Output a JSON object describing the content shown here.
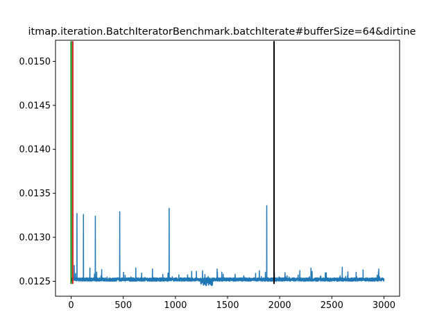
{
  "chart_data": {
    "type": "line",
    "title": "itmap.iteration.BatchIteratorBenchmark.batchIterate#bufferSize=64&dirtine",
    "xlabel": "",
    "ylabel": "",
    "xlim": [
      -150,
      3150
    ],
    "ylim": [
      0.01233,
      0.01524
    ],
    "xticks": [
      0,
      500,
      1000,
      1500,
      2000,
      2500,
      3000
    ],
    "xtick_labels": [
      "0",
      "500",
      "1000",
      "1500",
      "2000",
      "2500",
      "3000"
    ],
    "yticks": [
      0.0125,
      0.013,
      0.0135,
      0.014,
      0.0145,
      0.015
    ],
    "ytick_labels": [
      "0.0125",
      "0.0130",
      "0.0135",
      "0.0140",
      "0.0145",
      "0.0150"
    ],
    "grid": false,
    "series": [
      {
        "color": "#1f77b4",
        "n_points": 3000,
        "baseline": 0.01252,
        "noise": 4e-05,
        "spikes": [
          [
            56,
            0.01327
          ],
          [
            118,
            0.01326
          ],
          [
            232,
            0.01324
          ],
          [
            466,
            0.01329
          ],
          [
            940,
            0.01333
          ],
          [
            1876,
            0.01336
          ],
          [
            30,
            0.01268
          ],
          [
            180,
            0.01265
          ],
          [
            620,
            0.01265
          ],
          [
            780,
            0.01264
          ],
          [
            1260,
            0.01262
          ],
          [
            1400,
            0.01264
          ],
          [
            2300,
            0.01265
          ],
          [
            2600,
            0.01266
          ],
          [
            2800,
            0.01263
          ],
          [
            2950,
            0.01264
          ]
        ],
        "dips": [
          [
            1300,
            0.01247
          ],
          [
            1340,
            0.01246
          ],
          [
            1280,
            0.01247
          ]
        ]
      }
    ],
    "vertical_lines": [
      {
        "x": 0,
        "color": "#008000",
        "ymin": 0.01247,
        "ymax": 0.01523
      },
      {
        "x": 16,
        "color": "#d62728",
        "ymin": 0.01247,
        "ymax": 0.01523
      },
      {
        "x": 1946,
        "color": "#000000",
        "ymin": 0.01247,
        "ymax": 0.01523
      }
    ]
  }
}
